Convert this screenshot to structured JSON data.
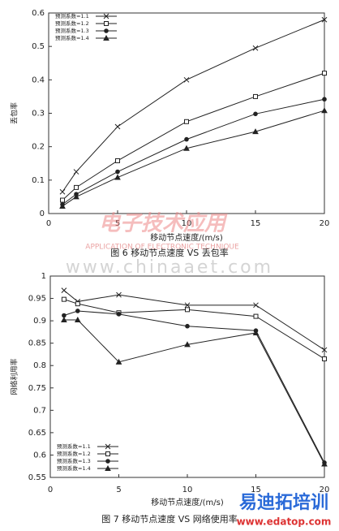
{
  "chart_data": [
    {
      "type": "line",
      "caption": "图 6 移动节点速度 VS 丢包率",
      "xlabel": "移动节点速度/(m/s)",
      "ylabel": "丢包率",
      "x": [
        1,
        2,
        5,
        10,
        15,
        20
      ],
      "xlim": [
        0,
        20
      ],
      "xticks": [
        0,
        5,
        10,
        15,
        20
      ],
      "ylim": [
        0,
        0.6
      ],
      "yticks": [
        0,
        0.1,
        0.2,
        0.3,
        0.4,
        0.5,
        0.6
      ],
      "legend": "upper left",
      "series": [
        {
          "name": "预测系数=1.1",
          "color": "#222222",
          "marker": "x",
          "values": [
            0.065,
            0.125,
            0.26,
            0.4,
            0.495,
            0.58
          ]
        },
        {
          "name": "预测系数=1.2",
          "color": "#222222",
          "marker": "square",
          "values": [
            0.04,
            0.078,
            0.158,
            0.275,
            0.35,
            0.42
          ]
        },
        {
          "name": "预测系数=1.3",
          "color": "#222222",
          "marker": "circle",
          "values": [
            0.027,
            0.058,
            0.125,
            0.222,
            0.298,
            0.342
          ]
        },
        {
          "name": "预测系数=1.4",
          "color": "#222222",
          "marker": "triangle",
          "values": [
            0.022,
            0.05,
            0.108,
            0.195,
            0.245,
            0.308
          ]
        }
      ]
    },
    {
      "type": "line",
      "caption": "图 7 移动节点速度 VS 网络使用率",
      "xlabel": "移动节点速度/(m/s)",
      "ylabel": "网络利用率",
      "x": [
        1,
        2,
        5,
        10,
        15,
        20
      ],
      "xlim": [
        0,
        20
      ],
      "xticks": [
        0,
        5,
        10,
        15,
        20
      ],
      "ylim": [
        0.55,
        1
      ],
      "yticks": [
        0.55,
        0.6,
        0.65,
        0.7,
        0.75,
        0.8,
        0.85,
        0.9,
        0.95,
        1
      ],
      "legend": "lower left",
      "series": [
        {
          "name": "预测系数=1.1",
          "color": "#222222",
          "marker": "x",
          "values": [
            0.968,
            0.943,
            0.958,
            0.935,
            0.935,
            0.835
          ]
        },
        {
          "name": "预测系数=1.2",
          "color": "#222222",
          "marker": "square",
          "values": [
            0.948,
            0.938,
            0.918,
            0.925,
            0.91,
            0.815
          ]
        },
        {
          "name": "预测系数=1.3",
          "color": "#222222",
          "marker": "circle",
          "values": [
            0.912,
            0.922,
            0.915,
            0.888,
            0.878,
            0.583
          ]
        },
        {
          "name": "预测系数=1.4",
          "color": "#222222",
          "marker": "triangle",
          "values": [
            0.902,
            0.902,
            0.808,
            0.847,
            0.873,
            0.58
          ]
        }
      ]
    }
  ],
  "watermarks": [
    "电子技术应用",
    "APPLICATION OF ELECTRONIC TECHNIQUE",
    "www.chinaaet.com",
    "易迪拓培训",
    "www.edatop.com"
  ]
}
